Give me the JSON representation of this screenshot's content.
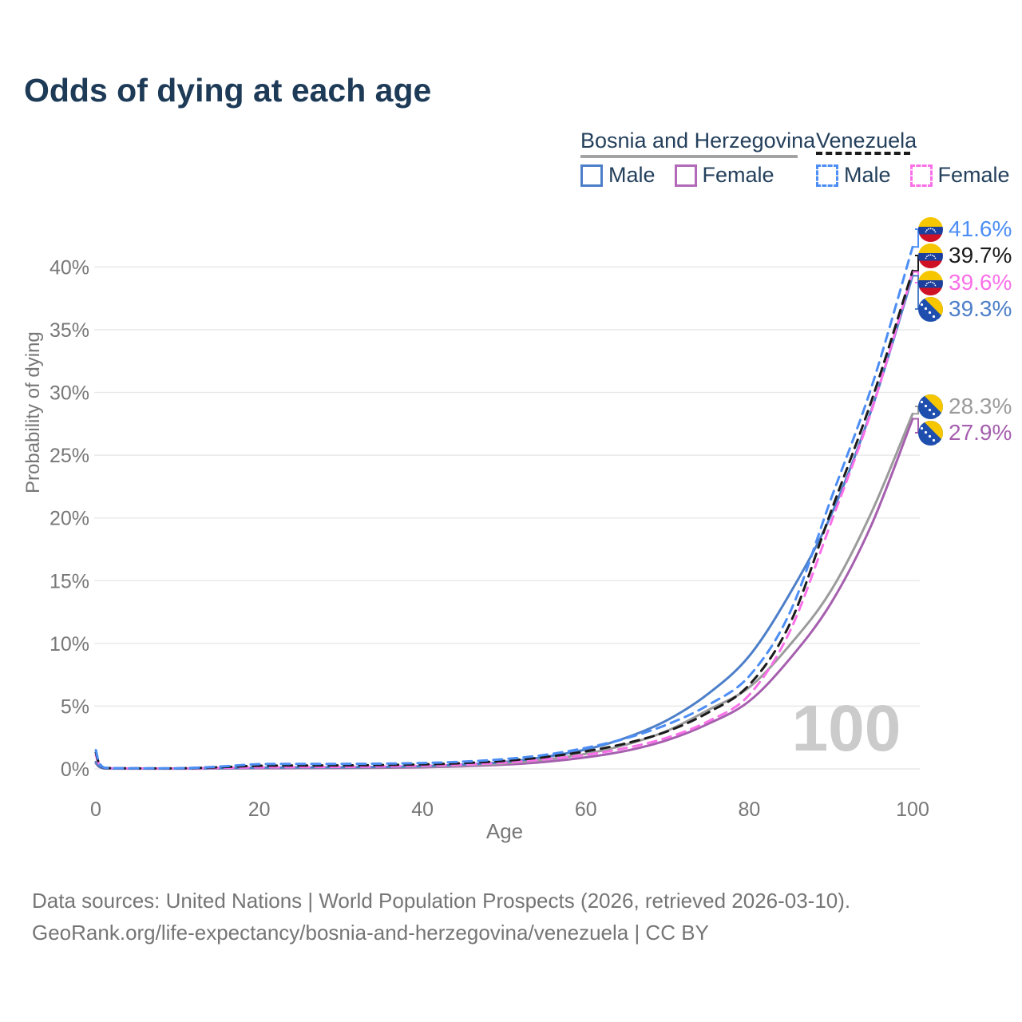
{
  "title": "Odds of dying at each age",
  "legend": {
    "groups": [
      {
        "label": "Bosnia and Herzegovina",
        "line_style": "solid",
        "rule_color": "#a3a3a3",
        "items": [
          {
            "label": "Male",
            "color": "#4d7fc9"
          },
          {
            "label": "Female",
            "color": "#b169b8"
          }
        ]
      },
      {
        "label": "Venezuela",
        "line_style": "dashed",
        "rule_color": "#1b1b1b",
        "items": [
          {
            "label": "Male",
            "color": "#4d8ef5"
          },
          {
            "label": "Female",
            "color": "#fa70e8"
          }
        ]
      }
    ]
  },
  "chart_data": {
    "type": "line",
    "title": "Odds of dying at each age",
    "xlabel": "Age",
    "ylabel": "Probability of dying",
    "x_ticks": [
      0,
      20,
      40,
      60,
      80,
      100
    ],
    "y_ticks": [
      "0%",
      "5%",
      "10%",
      "15%",
      "20%",
      "25%",
      "30%",
      "35%",
      "40%"
    ],
    "xlim": [
      0,
      100
    ],
    "ylim_percent": [
      0,
      43
    ],
    "grid": "horizontal",
    "legend_position": "top-right",
    "ages": [
      0,
      1,
      5,
      10,
      15,
      20,
      25,
      30,
      35,
      40,
      45,
      50,
      55,
      60,
      65,
      70,
      75,
      80,
      85,
      90,
      95,
      100
    ],
    "series": [
      {
        "name": "Bosnia and Herzegovina Female",
        "color": "#a55fae",
        "dash": false,
        "values": [
          0.45,
          0.04,
          0.02,
          0.02,
          0.03,
          0.05,
          0.06,
          0.07,
          0.09,
          0.13,
          0.21,
          0.34,
          0.56,
          0.92,
          1.45,
          2.3,
          3.6,
          5.4,
          8.8,
          13.2,
          19.5,
          27.9
        ]
      },
      {
        "name": "Bosnia and Herzegovina Total",
        "color": "#9b9b9b",
        "dash": false,
        "values": [
          0.5,
          0.045,
          0.025,
          0.025,
          0.045,
          0.075,
          0.09,
          0.1,
          0.12,
          0.17,
          0.27,
          0.44,
          0.74,
          1.2,
          1.95,
          3.05,
          4.7,
          6.5,
          9.9,
          14.2,
          20.5,
          28.3
        ]
      },
      {
        "name": "Bosnia and Herzegovina Male",
        "color": "#4d7fc9",
        "dash": false,
        "values": [
          0.55,
          0.05,
          0.03,
          0.03,
          0.06,
          0.1,
          0.12,
          0.13,
          0.16,
          0.22,
          0.35,
          0.55,
          0.95,
          1.55,
          2.5,
          3.9,
          6.0,
          9.0,
          14.0,
          20.2,
          28.7,
          39.3
        ]
      },
      {
        "name": "Venezuela Female",
        "color": "#fa70e8",
        "dash": true,
        "values": [
          1.1,
          0.08,
          0.04,
          0.03,
          0.08,
          0.12,
          0.14,
          0.16,
          0.19,
          0.25,
          0.34,
          0.5,
          0.76,
          1.12,
          1.68,
          2.5,
          3.8,
          5.9,
          11.0,
          19.6,
          28.6,
          39.6
        ]
      },
      {
        "name": "Venezuela Total",
        "color": "#1b1b1b",
        "dash": true,
        "values": [
          1.3,
          0.09,
          0.045,
          0.04,
          0.13,
          0.25,
          0.27,
          0.28,
          0.31,
          0.36,
          0.46,
          0.64,
          0.94,
          1.4,
          2.05,
          3.0,
          4.5,
          6.7,
          11.6,
          20.5,
          29.4,
          39.7
        ]
      },
      {
        "name": "Venezuela Male",
        "color": "#4d8ef5",
        "dash": true,
        "values": [
          1.5,
          0.1,
          0.05,
          0.05,
          0.18,
          0.38,
          0.4,
          0.4,
          0.42,
          0.47,
          0.58,
          0.78,
          1.12,
          1.68,
          2.45,
          3.55,
          5.1,
          7.4,
          12.5,
          21.5,
          30.5,
          41.6
        ]
      }
    ],
    "end_labels": [
      {
        "text": "41.6%",
        "value": 41.6,
        "color": "#4d8ef5",
        "country": "venezuela",
        "flag_icon": "venezuela-flag-icon"
      },
      {
        "text": "39.7%",
        "value": 39.7,
        "color": "#1b1b1b",
        "country": "venezuela",
        "flag_icon": "venezuela-flag-icon"
      },
      {
        "text": "39.6%",
        "value": 39.6,
        "color": "#fa70e8",
        "country": "venezuela",
        "flag_icon": "venezuela-flag-icon"
      },
      {
        "text": "39.3%",
        "value": 39.3,
        "color": "#4d7fc9",
        "country": "bosnia",
        "flag_icon": "bosnia-flag-icon"
      },
      {
        "text": "28.3%",
        "value": 28.3,
        "color": "#9b9b9b",
        "country": "bosnia",
        "flag_icon": "bosnia-flag-icon"
      },
      {
        "text": "27.9%",
        "value": 27.9,
        "color": "#a55fae",
        "country": "bosnia",
        "flag_icon": "bosnia-flag-icon"
      }
    ],
    "watermark": "100"
  },
  "colors": {
    "title": "#1d3a57",
    "axis_text": "#777777",
    "gridline": "#e9e9e9",
    "watermark": "#cbcbcb",
    "footer_text": "#757575"
  },
  "footer": {
    "line1": "Data sources: United Nations | World Population Prospects (2026, retrieved 2026-03-10).",
    "line2": "GeoRank.org/life-expectancy/bosnia-and-herzegovina/venezuela | CC BY"
  }
}
